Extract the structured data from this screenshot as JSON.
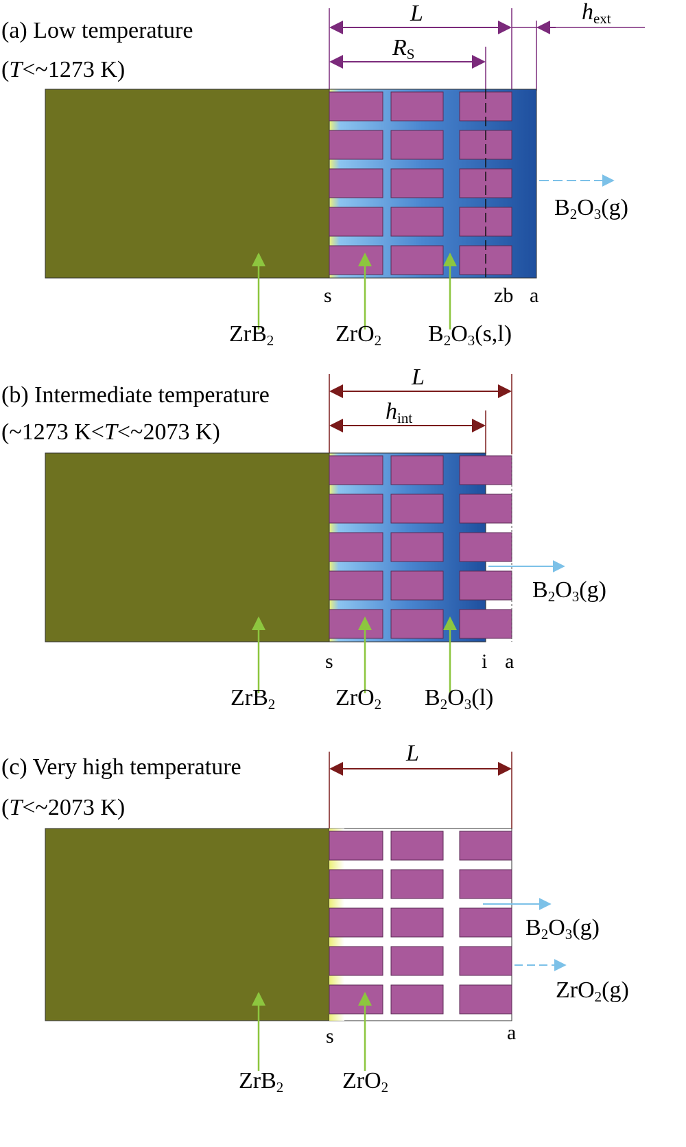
{
  "colors": {
    "zrb2": "#6e7220",
    "zro2_grain": "#a9599b",
    "grain_stroke": "#5b2a55",
    "b2o3_deep": "#1e4f9e",
    "b2o3_light": "#8cc4f0",
    "interface_yellow": "#ecf07a",
    "arrow_green": "#8dc63f",
    "gas_arrow": "#7cc1e8",
    "dim_purple": "#7b2a7b",
    "dim_dark_red": "#7a1a1a"
  },
  "panel_a": {
    "title": "(a) Low temperature",
    "cond_italic": "T",
    "cond_rest": "<~1273 K)",
    "cond_open": "(",
    "dim_L": "L",
    "dim_Rs_main": "R",
    "dim_Rs_sub": "S",
    "dim_hext_main": "h",
    "dim_hext_sub": "ext",
    "label_s": "s",
    "label_zb": "zb",
    "label_a": "a",
    "gas_main": "B",
    "gas_sub": "2",
    "gas_rest": "O",
    "gas_sub2": "3",
    "gas_tail": "(g)",
    "zrb2_main": "ZrB",
    "zrb2_sub": "2",
    "zro2_main": "ZrO",
    "zro2_sub": "2",
    "b2o3_main": "B",
    "b2o3_sub": "2",
    "b2o3_mid": "O",
    "b2o3_sub2": "3",
    "b2o3_tail": "(s,l)"
  },
  "panel_b": {
    "title": "(b) Intermediate temperature",
    "cond_open": "(~1273 K<",
    "cond_italic": "T",
    "cond_rest": "<~2073 K)",
    "dim_L": "L",
    "dim_hint_main": "h",
    "dim_hint_sub": "int",
    "label_s": "s",
    "label_i": "i",
    "label_a": "a",
    "gas_main": "B",
    "gas_sub": "2",
    "gas_rest": "O",
    "gas_sub2": "3",
    "gas_tail": "(g)",
    "zrb2_main": "ZrB",
    "zrb2_sub": "2",
    "zro2_main": "ZrO",
    "zro2_sub": "2",
    "b2o3_main": "B",
    "b2o3_sub": "2",
    "b2o3_mid": "O",
    "b2o3_sub2": "3",
    "b2o3_tail": "(l)"
  },
  "panel_c": {
    "title": "(c) Very high temperature",
    "cond_open": "(",
    "cond_italic": "T",
    "cond_rest": "<~2073 K)",
    "dim_L": "L",
    "label_s": "s",
    "label_a": "a",
    "gas1_main": "B",
    "gas1_sub": "2",
    "gas1_rest": "O",
    "gas1_sub2": "3",
    "gas1_tail": "(g)",
    "gas2_main": "ZrO",
    "gas2_sub": "2",
    "gas2_tail": "(g)",
    "zrb2_main": "ZrB",
    "zrb2_sub": "2",
    "zro2_main": "ZrO",
    "zro2_sub": "2"
  }
}
